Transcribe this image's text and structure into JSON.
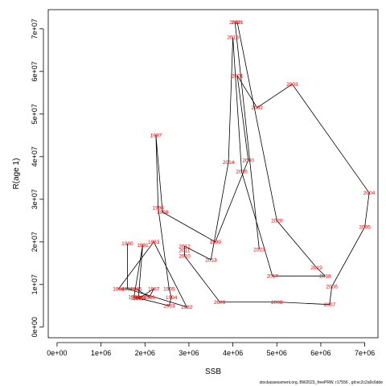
{
  "chart_data": {
    "type": "line",
    "xlabel": "SSB",
    "ylabel": "R(age 1)",
    "xlim": [
      -200000,
      7300000
    ],
    "ylim": [
      -2500000,
      74500000
    ],
    "x_ticks": [
      0,
      1000000,
      2000000,
      3000000,
      4000000,
      5000000,
      6000000,
      7000000
    ],
    "x_tick_labels": [
      "0e+00",
      "1e+06",
      "2e+06",
      "3e+06",
      "4e+06",
      "5e+06",
      "6e+06",
      "7e+06"
    ],
    "y_ticks": [
      0,
      10000000,
      20000000,
      30000000,
      40000000,
      50000000,
      60000000,
      70000000
    ],
    "y_tick_labels": [
      "0e+00",
      "1e+07",
      "2e+07",
      "3e+07",
      "4e+07",
      "5e+07",
      "6e+07",
      "7e+07"
    ],
    "line_color": "#000000",
    "label_color": "#ff0000",
    "series": [
      {
        "points": [
          {
            "year": "1980",
            "x": 1600000,
            "y": 19600000
          },
          {
            "year": "1981",
            "x": 1600000,
            "y": 9000000
          },
          {
            "year": "1982",
            "x": 2950000,
            "y": 4700000
          },
          {
            "year": "1983",
            "x": 2200000,
            "y": 20000000
          },
          {
            "year": "1984",
            "x": 1400000,
            "y": 9000000
          },
          {
            "year": "1985",
            "x": 1800000,
            "y": 9000000
          },
          {
            "year": "1986",
            "x": 2100000,
            "y": 7000000
          },
          {
            "year": "1987",
            "x": 2200000,
            "y": 9000000
          },
          {
            "year": "1988",
            "x": 1900000,
            "y": 7000000
          },
          {
            "year": "1989",
            "x": 1800000,
            "y": 6900000
          },
          {
            "year": "1990",
            "x": 1750000,
            "y": 7100000
          },
          {
            "year": "1991",
            "x": 1950000,
            "y": 19300000
          },
          {
            "year": "1992",
            "x": 1850000,
            "y": 6800000
          },
          {
            "year": "1993",
            "x": 2550000,
            "y": 5000000
          },
          {
            "year": "1994",
            "x": 2600000,
            "y": 7000000
          },
          {
            "year": "1995",
            "x": 2550000,
            "y": 9000000
          },
          {
            "year": "1996",
            "x": 2300000,
            "y": 28000000
          },
          {
            "year": "1997",
            "x": 2250000,
            "y": 45000000
          },
          {
            "year": "1998",
            "x": 2400000,
            "y": 27000000
          },
          {
            "year": "1999",
            "x": 3600000,
            "y": 20000000
          },
          {
            "year": "2000",
            "x": 4350000,
            "y": 39200000
          },
          {
            "year": "2001",
            "x": 4100000,
            "y": 59000000
          },
          {
            "year": "2002",
            "x": 4550000,
            "y": 51500000
          },
          {
            "year": "2003",
            "x": 5350000,
            "y": 57000000
          },
          {
            "year": "2004",
            "x": 7100000,
            "y": 31500000
          },
          {
            "year": "2005",
            "x": 7000000,
            "y": 23500000
          },
          {
            "year": "2006",
            "x": 6250000,
            "y": 9500000
          },
          {
            "year": "2007",
            "x": 6200000,
            "y": 5300000
          },
          {
            "year": "2008",
            "x": 5000000,
            "y": 5900000
          },
          {
            "year": "2009",
            "x": 3700000,
            "y": 5900000
          },
          {
            "year": "2010",
            "x": 2900000,
            "y": 16700000
          },
          {
            "year": "2011",
            "x": 2900000,
            "y": 18000000
          },
          {
            "year": "2012",
            "x": 2900000,
            "y": 19000000
          },
          {
            "year": "2013",
            "x": 3500000,
            "y": 15800000
          },
          {
            "year": "2014",
            "x": 3900000,
            "y": 38700000
          },
          {
            "year": "2015",
            "x": 4000000,
            "y": 68000000
          },
          {
            "year": "2016",
            "x": 4200000,
            "y": 36500000
          },
          {
            "year": "2017",
            "x": 4900000,
            "y": 12000000
          },
          {
            "year": "2018",
            "x": 6100000,
            "y": 12000000
          },
          {
            "year": "2019",
            "x": 5900000,
            "y": 14000000
          },
          {
            "year": "2020",
            "x": 5000000,
            "y": 25000000
          },
          {
            "year": "2021",
            "x": 4100000,
            "y": 71500000
          },
          {
            "year": "2022",
            "x": 4050000,
            "y": 71500000
          },
          {
            "year": "2023",
            "x": 4600000,
            "y": 18200000
          }
        ]
      }
    ]
  },
  "footer": {
    "text": "stockassessment.org, BW2023_freePRW, r17556 , git:ec2c2a0c6dde"
  }
}
